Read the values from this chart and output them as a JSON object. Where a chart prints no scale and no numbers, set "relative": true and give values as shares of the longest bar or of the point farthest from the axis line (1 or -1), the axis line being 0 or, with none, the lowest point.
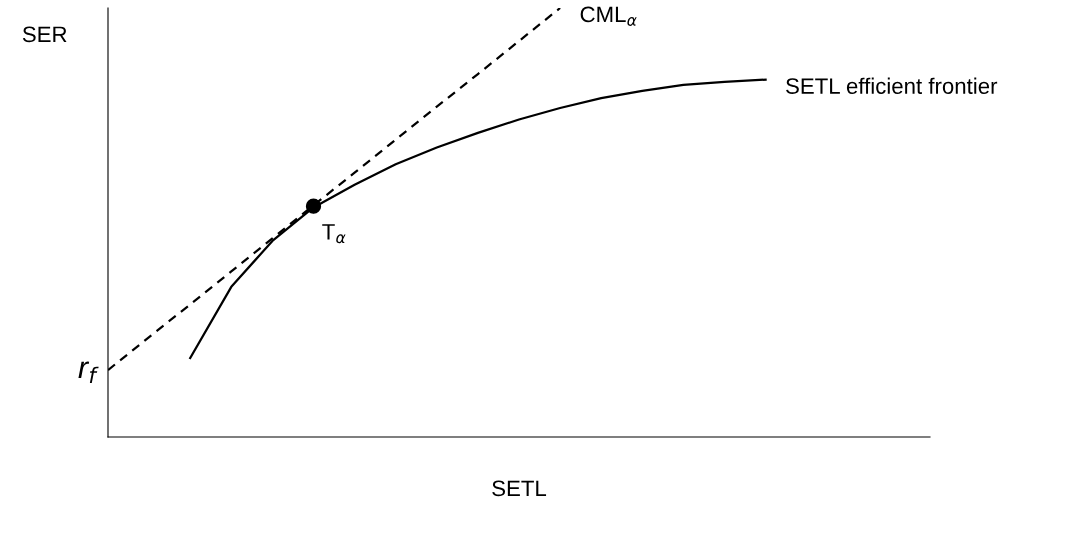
{
  "chart_data": {
    "type": "line",
    "relative": true,
    "xlabel": "SETL",
    "ylabel": "SER",
    "categories": [
      null,
      null,
      null,
      null,
      null,
      null,
      null,
      null,
      null,
      null,
      null,
      null,
      null,
      null,
      null,
      null,
      null
    ],
    "series": [
      {
        "name": "CML$_{α}$",
        "color": "#000000",
        "line_style": "dashed",
        "values": [
          0.156,
          0.233,
          0.309,
          0.386,
          0.463,
          0.54,
          0.616,
          0.693,
          0.77,
          0.846,
          0.923,
          1.0,
          null,
          null,
          null,
          null,
          null
        ]
      },
      {
        "name": "SETL efficient frontier",
        "color": "#000000",
        "line_style": "solid",
        "values": [
          null,
          null,
          0.184,
          0.35,
          0.457,
          0.535,
          0.588,
          0.636,
          0.675,
          0.709,
          0.74,
          0.767,
          0.79,
          0.807,
          0.821,
          0.828,
          0.833
        ]
      },
      {
        "name": "T$_{α}$",
        "color": "#000000",
        "marker": "circle",
        "values": [
          null,
          null,
          null,
          null,
          null,
          0.538,
          null,
          null,
          null,
          null,
          null,
          null,
          null,
          null,
          null,
          null,
          null
        ]
      }
    ],
    "annotations": [
      "r$_{f}$"
    ]
  }
}
